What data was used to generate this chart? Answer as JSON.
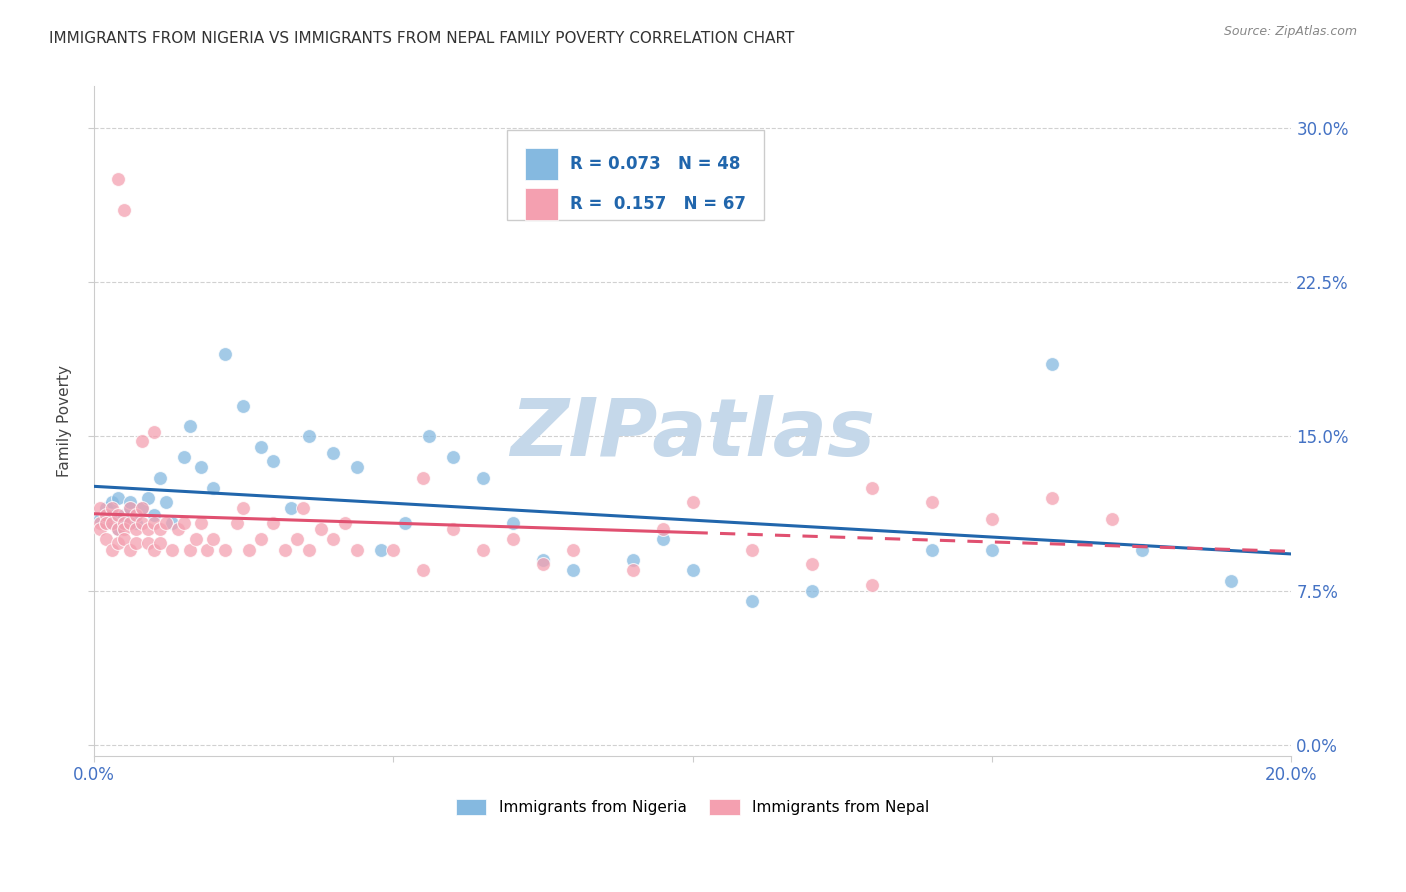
{
  "title": "IMMIGRANTS FROM NIGERIA VS IMMIGRANTS FROM NEPAL FAMILY POVERTY CORRELATION CHART",
  "source": "Source: ZipAtlas.com",
  "ylabel": "Family Poverty",
  "xlim": [
    0.0,
    0.2
  ],
  "ylim": [
    -0.005,
    0.32
  ],
  "nigeria_R": 0.073,
  "nigeria_N": 48,
  "nepal_R": 0.157,
  "nepal_N": 67,
  "nigeria_color": "#85b9e0",
  "nepal_color": "#f4a0b0",
  "nigeria_line_color": "#2166ac",
  "nepal_line_color": "#e05070",
  "background_color": "#ffffff",
  "watermark_text": "ZIPatlas",
  "watermark_color": "#c5d8ea",
  "ytick_vals": [
    0.0,
    0.075,
    0.15,
    0.225,
    0.3
  ],
  "ytick_labels": [
    "0.0%",
    "7.5%",
    "15.0%",
    "22.5%",
    "30.0%"
  ],
  "xtick_vals": [
    0.0,
    0.05,
    0.1,
    0.15,
    0.2
  ],
  "xtick_labels": [
    "0.0%",
    "",
    "",
    "",
    "20.0%"
  ],
  "tick_color": "#4472c4",
  "legend_label_nigeria": "Immigrants from Nigeria",
  "legend_label_nepal": "Immigrants from Nepal",
  "nigeria_x": [
    0.001,
    0.002,
    0.002,
    0.003,
    0.003,
    0.004,
    0.004,
    0.005,
    0.005,
    0.006,
    0.006,
    0.007,
    0.008,
    0.009,
    0.01,
    0.011,
    0.012,
    0.013,
    0.015,
    0.016,
    0.018,
    0.02,
    0.022,
    0.025,
    0.028,
    0.03,
    0.033,
    0.036,
    0.04,
    0.044,
    0.048,
    0.052,
    0.056,
    0.06,
    0.065,
    0.07,
    0.075,
    0.08,
    0.09,
    0.095,
    0.1,
    0.11,
    0.12,
    0.14,
    0.15,
    0.16,
    0.175,
    0.19
  ],
  "nigeria_y": [
    0.11,
    0.108,
    0.115,
    0.112,
    0.118,
    0.105,
    0.12,
    0.112,
    0.108,
    0.115,
    0.118,
    0.108,
    0.115,
    0.12,
    0.112,
    0.13,
    0.118,
    0.108,
    0.14,
    0.155,
    0.135,
    0.125,
    0.19,
    0.165,
    0.145,
    0.138,
    0.115,
    0.15,
    0.142,
    0.135,
    0.095,
    0.108,
    0.15,
    0.14,
    0.13,
    0.108,
    0.09,
    0.085,
    0.09,
    0.1,
    0.085,
    0.07,
    0.075,
    0.095,
    0.095,
    0.185,
    0.095,
    0.08
  ],
  "nepal_x": [
    0.001,
    0.001,
    0.001,
    0.002,
    0.002,
    0.002,
    0.003,
    0.003,
    0.003,
    0.004,
    0.004,
    0.004,
    0.005,
    0.005,
    0.005,
    0.006,
    0.006,
    0.006,
    0.007,
    0.007,
    0.007,
    0.008,
    0.008,
    0.009,
    0.009,
    0.01,
    0.01,
    0.011,
    0.011,
    0.012,
    0.013,
    0.014,
    0.015,
    0.016,
    0.017,
    0.018,
    0.019,
    0.02,
    0.022,
    0.024,
    0.026,
    0.028,
    0.03,
    0.032,
    0.034,
    0.036,
    0.038,
    0.04,
    0.042,
    0.044,
    0.05,
    0.055,
    0.06,
    0.065,
    0.07,
    0.075,
    0.08,
    0.09,
    0.095,
    0.1,
    0.11,
    0.12,
    0.13,
    0.14,
    0.15,
    0.16,
    0.17
  ],
  "nepal_y": [
    0.108,
    0.115,
    0.105,
    0.112,
    0.108,
    0.1,
    0.115,
    0.108,
    0.095,
    0.112,
    0.105,
    0.098,
    0.108,
    0.105,
    0.1,
    0.115,
    0.108,
    0.095,
    0.112,
    0.105,
    0.098,
    0.108,
    0.115,
    0.105,
    0.098,
    0.108,
    0.095,
    0.105,
    0.098,
    0.108,
    0.095,
    0.105,
    0.108,
    0.095,
    0.1,
    0.108,
    0.095,
    0.1,
    0.095,
    0.108,
    0.095,
    0.1,
    0.108,
    0.095,
    0.1,
    0.095,
    0.105,
    0.1,
    0.108,
    0.095,
    0.095,
    0.085,
    0.105,
    0.095,
    0.1,
    0.088,
    0.095,
    0.085,
    0.105,
    0.118,
    0.095,
    0.088,
    0.078,
    0.118,
    0.11,
    0.12,
    0.11
  ],
  "nepal_outliers_x": [
    0.004,
    0.005,
    0.008,
    0.01,
    0.025,
    0.035,
    0.055,
    0.13
  ],
  "nepal_outliers_y": [
    0.275,
    0.26,
    0.148,
    0.152,
    0.115,
    0.115,
    0.13,
    0.125
  ]
}
